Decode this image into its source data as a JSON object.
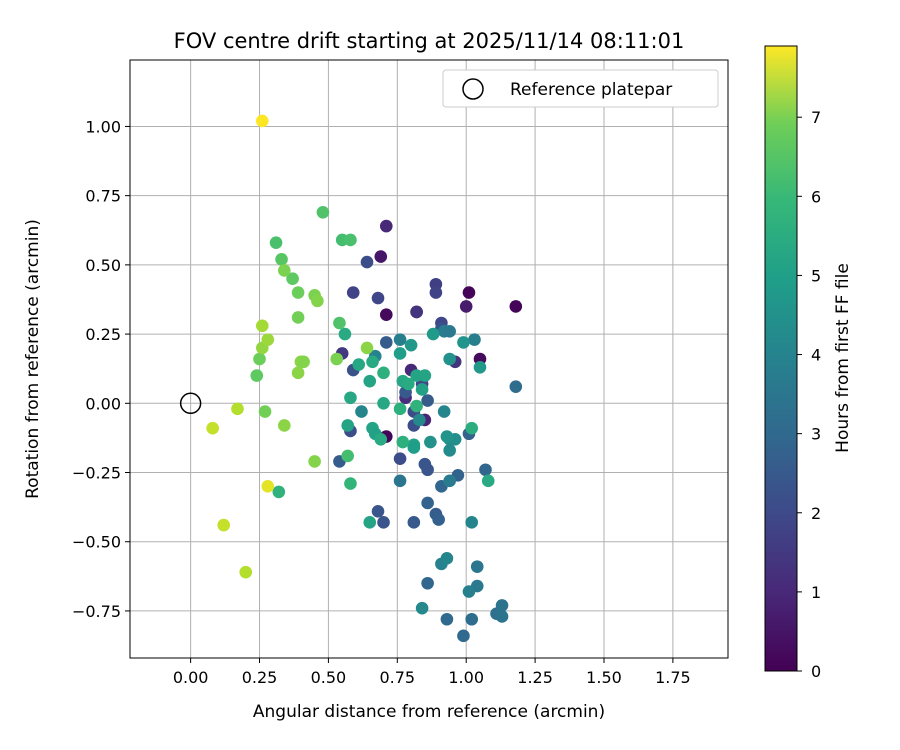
{
  "chart_data": {
    "type": "scatter",
    "title": "FOV centre drift starting at 2025/11/14 08:11:01",
    "xlabel": "Angular distance from reference (arcmin)",
    "ylabel": "Rotation from reference (arcmin)",
    "xlim": [
      -0.22,
      1.95
    ],
    "ylim": [
      -0.92,
      1.24
    ],
    "xticks": [
      0.0,
      0.25,
      0.5,
      0.75,
      1.0,
      1.25,
      1.5,
      1.75
    ],
    "xtick_labels": [
      "0.00",
      "0.25",
      "0.50",
      "0.75",
      "1.00",
      "1.25",
      "1.50",
      "1.75"
    ],
    "yticks": [
      1.0,
      0.75,
      0.5,
      0.25,
      0.0,
      -0.25,
      -0.5,
      -0.75
    ],
    "ytick_labels": [
      "1.00",
      "0.75",
      "0.50",
      "0.25",
      "0.00",
      "−0.25",
      "−0.50",
      "−0.75"
    ],
    "grid": true,
    "colormap": "viridis",
    "colorbar": {
      "label": "Hours from first FF file",
      "range": [
        0,
        7.9
      ],
      "ticks": [
        0,
        1,
        2,
        3,
        4,
        5,
        6,
        7
      ],
      "tick_labels": [
        "0",
        "1",
        "2",
        "3",
        "4",
        "5",
        "6",
        "7"
      ]
    },
    "legend": {
      "placement": "top-right",
      "entries": [
        {
          "label": "Reference platepar",
          "marker": "open-circle"
        }
      ]
    },
    "reference_point": {
      "x": 0.0,
      "y": 0.0
    },
    "points": [
      {
        "x": 1.18,
        "y": 0.35,
        "c": 0.1
      },
      {
        "x": 1.01,
        "y": 0.4,
        "c": 0.1
      },
      {
        "x": 1.05,
        "y": 0.16,
        "c": 0.2
      },
      {
        "x": 0.71,
        "y": 0.32,
        "c": 0.2
      },
      {
        "x": 0.71,
        "y": -0.12,
        "c": 0.1
      },
      {
        "x": 0.82,
        "y": 0.33,
        "c": 0.3
      },
      {
        "x": 0.69,
        "y": 0.53,
        "c": 0.5
      },
      {
        "x": 0.71,
        "y": 0.64,
        "c": 0.9
      },
      {
        "x": 1.0,
        "y": 0.35,
        "c": 0.6
      },
      {
        "x": 0.85,
        "y": -0.06,
        "c": 0.8
      },
      {
        "x": 0.8,
        "y": 0.12,
        "c": 0.9
      },
      {
        "x": 0.78,
        "y": 0.02,
        "c": 1.0
      },
      {
        "x": 0.96,
        "y": 0.15,
        "c": 1.2
      },
      {
        "x": 0.55,
        "y": 0.18,
        "c": 1.3
      },
      {
        "x": 0.82,
        "y": 0.33,
        "c": 1.2
      },
      {
        "x": 0.89,
        "y": 0.43,
        "c": 1.5
      },
      {
        "x": 0.89,
        "y": 0.4,
        "c": 1.6
      },
      {
        "x": 0.59,
        "y": 0.4,
        "c": 1.6
      },
      {
        "x": 0.68,
        "y": 0.38,
        "c": 1.7
      },
      {
        "x": 0.64,
        "y": 0.51,
        "c": 1.9
      },
      {
        "x": 0.91,
        "y": 0.29,
        "c": 1.7
      },
      {
        "x": 0.91,
        "y": 0.27,
        "c": 2.0
      },
      {
        "x": 0.81,
        "y": -0.03,
        "c": 1.8
      },
      {
        "x": 0.84,
        "y": 0.07,
        "c": 1.7
      },
      {
        "x": 0.59,
        "y": 0.12,
        "c": 2.0
      },
      {
        "x": 0.58,
        "y": -0.1,
        "c": 1.9
      },
      {
        "x": 0.81,
        "y": -0.08,
        "c": 1.9
      },
      {
        "x": 0.76,
        "y": -0.2,
        "c": 1.9
      },
      {
        "x": 0.85,
        "y": -0.22,
        "c": 2.1
      },
      {
        "x": 0.86,
        "y": -0.24,
        "c": 2.1
      },
      {
        "x": 0.78,
        "y": 0.04,
        "c": 2.2
      },
      {
        "x": 0.86,
        "y": 0.01,
        "c": 2.3
      },
      {
        "x": 0.71,
        "y": 0.22,
        "c": 2.3
      },
      {
        "x": 0.54,
        "y": -0.21,
        "c": 2.3
      },
      {
        "x": 0.68,
        "y": -0.39,
        "c": 2.1
      },
      {
        "x": 0.7,
        "y": -0.43,
        "c": 2.1
      },
      {
        "x": 0.81,
        "y": -0.43,
        "c": 2.2
      },
      {
        "x": 0.89,
        "y": -0.4,
        "c": 2.3
      },
      {
        "x": 0.9,
        "y": -0.42,
        "c": 2.4
      },
      {
        "x": 0.86,
        "y": -0.36,
        "c": 2.5
      },
      {
        "x": 0.91,
        "y": -0.3,
        "c": 2.6
      },
      {
        "x": 0.97,
        "y": -0.26,
        "c": 2.5
      },
      {
        "x": 1.07,
        "y": -0.24,
        "c": 2.6
      },
      {
        "x": 1.01,
        "y": -0.11,
        "c": 2.5
      },
      {
        "x": 1.18,
        "y": 0.06,
        "c": 2.8
      },
      {
        "x": 0.86,
        "y": -0.65,
        "c": 2.6
      },
      {
        "x": 0.93,
        "y": -0.78,
        "c": 2.7
      },
      {
        "x": 0.99,
        "y": -0.84,
        "c": 2.7
      },
      {
        "x": 1.02,
        "y": -0.78,
        "c": 2.8
      },
      {
        "x": 1.11,
        "y": -0.76,
        "c": 2.9
      },
      {
        "x": 1.13,
        "y": -0.77,
        "c": 3.0
      },
      {
        "x": 1.13,
        "y": -0.73,
        "c": 3.0
      },
      {
        "x": 1.04,
        "y": -0.66,
        "c": 3.2
      },
      {
        "x": 1.04,
        "y": -0.59,
        "c": 3.1
      },
      {
        "x": 1.01,
        "y": -0.68,
        "c": 3.4
      },
      {
        "x": 0.91,
        "y": -0.58,
        "c": 3.5
      },
      {
        "x": 0.93,
        "y": -0.56,
        "c": 3.6
      },
      {
        "x": 0.84,
        "y": -0.74,
        "c": 3.7
      },
      {
        "x": 0.94,
        "y": -0.28,
        "c": 3.3
      },
      {
        "x": 0.76,
        "y": -0.28,
        "c": 3.1
      },
      {
        "x": 0.92,
        "y": 0.26,
        "c": 3.3
      },
      {
        "x": 0.94,
        "y": 0.26,
        "c": 3.2
      },
      {
        "x": 1.03,
        "y": 0.23,
        "c": 3.4
      },
      {
        "x": 0.67,
        "y": 0.17,
        "c": 3.5
      },
      {
        "x": 0.62,
        "y": -0.03,
        "c": 3.6
      },
      {
        "x": 0.76,
        "y": 0.23,
        "c": 3.4
      },
      {
        "x": 0.83,
        "y": -0.06,
        "c": 3.7
      },
      {
        "x": 0.92,
        "y": -0.03,
        "c": 3.6
      },
      {
        "x": 0.94,
        "y": -0.13,
        "c": 3.8
      },
      {
        "x": 0.94,
        "y": -0.17,
        "c": 3.8
      },
      {
        "x": 0.96,
        "y": -0.13,
        "c": 3.9
      },
      {
        "x": 1.02,
        "y": -0.43,
        "c": 3.6
      },
      {
        "x": 0.93,
        "y": -0.12,
        "c": 4.1
      },
      {
        "x": 0.87,
        "y": -0.14,
        "c": 4.0
      },
      {
        "x": 0.99,
        "y": 0.22,
        "c": 4.1
      },
      {
        "x": 1.05,
        "y": 0.13,
        "c": 4.2
      },
      {
        "x": 0.94,
        "y": 0.16,
        "c": 4.0
      },
      {
        "x": 0.88,
        "y": 0.25,
        "c": 4.3
      },
      {
        "x": 0.8,
        "y": 0.21,
        "c": 4.2
      },
      {
        "x": 0.76,
        "y": 0.18,
        "c": 4.4
      },
      {
        "x": 0.81,
        "y": -0.15,
        "c": 4.5
      },
      {
        "x": 0.81,
        "y": -0.16,
        "c": 4.4
      },
      {
        "x": 0.82,
        "y": 0.1,
        "c": 4.6
      },
      {
        "x": 0.85,
        "y": 0.1,
        "c": 4.6
      },
      {
        "x": 0.84,
        "y": 0.05,
        "c": 4.5
      },
      {
        "x": 0.77,
        "y": 0.08,
        "c": 4.7
      },
      {
        "x": 0.79,
        "y": 0.07,
        "c": 4.8
      },
      {
        "x": 0.7,
        "y": 0.0,
        "c": 4.7
      },
      {
        "x": 0.66,
        "y": -0.09,
        "c": 4.6
      },
      {
        "x": 0.67,
        "y": -0.11,
        "c": 4.5
      },
      {
        "x": 0.69,
        "y": -0.13,
        "c": 4.8
      },
      {
        "x": 0.58,
        "y": 0.02,
        "c": 4.7
      },
      {
        "x": 0.57,
        "y": -0.08,
        "c": 4.6
      },
      {
        "x": 0.65,
        "y": 0.08,
        "c": 4.6
      },
      {
        "x": 0.61,
        "y": 0.14,
        "c": 4.7
      },
      {
        "x": 0.66,
        "y": 0.15,
        "c": 4.8
      },
      {
        "x": 0.7,
        "y": 0.11,
        "c": 5.0
      },
      {
        "x": 0.76,
        "y": -0.02,
        "c": 5.0
      },
      {
        "x": 0.82,
        "y": -0.01,
        "c": 5.1
      },
      {
        "x": 0.77,
        "y": -0.14,
        "c": 5.0
      },
      {
        "x": 0.65,
        "y": -0.43,
        "c": 4.6
      },
      {
        "x": 0.56,
        "y": 0.25,
        "c": 4.8
      },
      {
        "x": 1.02,
        "y": -0.09,
        "c": 4.9
      },
      {
        "x": 1.08,
        "y": -0.28,
        "c": 4.8
      },
      {
        "x": 0.58,
        "y": -0.29,
        "c": 5.2
      },
      {
        "x": 0.57,
        "y": -0.19,
        "c": 5.5
      },
      {
        "x": 0.55,
        "y": 0.59,
        "c": 5.5
      },
      {
        "x": 0.58,
        "y": 0.59,
        "c": 5.6
      },
      {
        "x": 0.48,
        "y": 0.69,
        "c": 5.7
      },
      {
        "x": 0.54,
        "y": 0.29,
        "c": 5.7
      },
      {
        "x": 0.31,
        "y": 0.58,
        "c": 5.6
      },
      {
        "x": 0.33,
        "y": 0.52,
        "c": 5.8
      },
      {
        "x": 0.37,
        "y": 0.45,
        "c": 5.9
      },
      {
        "x": 0.39,
        "y": 0.4,
        "c": 6.1
      },
      {
        "x": 0.34,
        "y": 0.48,
        "c": 6.3
      },
      {
        "x": 0.45,
        "y": 0.39,
        "c": 6.3
      },
      {
        "x": 0.46,
        "y": 0.37,
        "c": 6.4
      },
      {
        "x": 0.39,
        "y": 0.31,
        "c": 6.2
      },
      {
        "x": 0.4,
        "y": 0.15,
        "c": 6.5
      },
      {
        "x": 0.41,
        "y": 0.15,
        "c": 6.4
      },
      {
        "x": 0.39,
        "y": 0.11,
        "c": 6.5
      },
      {
        "x": 0.53,
        "y": 0.16,
        "c": 6.3
      },
      {
        "x": 0.64,
        "y": 0.2,
        "c": 6.5
      },
      {
        "x": 0.24,
        "y": 0.1,
        "c": 5.9
      },
      {
        "x": 0.25,
        "y": 0.16,
        "c": 6.1
      },
      {
        "x": 0.26,
        "y": 0.2,
        "c": 6.6
      },
      {
        "x": 0.28,
        "y": 0.23,
        "c": 6.7
      },
      {
        "x": 0.26,
        "y": 0.28,
        "c": 6.8
      },
      {
        "x": 0.27,
        "y": -0.03,
        "c": 6.2
      },
      {
        "x": 0.34,
        "y": -0.08,
        "c": 6.5
      },
      {
        "x": 0.45,
        "y": -0.21,
        "c": 6.4
      },
      {
        "x": 0.32,
        "y": -0.32,
        "c": 5.1
      },
      {
        "x": 0.17,
        "y": -0.02,
        "c": 7.0
      },
      {
        "x": 0.08,
        "y": -0.09,
        "c": 7.2
      },
      {
        "x": 0.12,
        "y": -0.44,
        "c": 7.2
      },
      {
        "x": 0.2,
        "y": -0.61,
        "c": 7.0
      },
      {
        "x": 0.28,
        "y": -0.3,
        "c": 7.6
      },
      {
        "x": 0.26,
        "y": 1.02,
        "c": 7.9
      }
    ]
  }
}
